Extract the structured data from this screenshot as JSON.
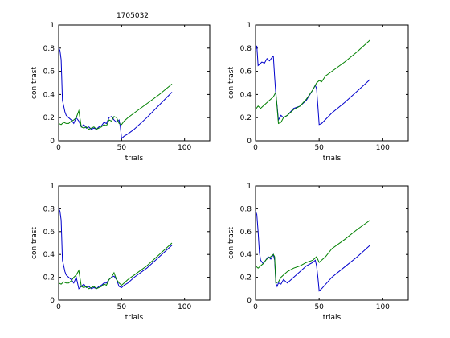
{
  "figure_title": "1705032",
  "colors": {
    "blue": "#0000cc",
    "green": "#008000",
    "axis": "#000000"
  },
  "chart_data": [
    {
      "type": "line",
      "title": "1705032",
      "xlabel": "trials",
      "ylabel": "con trast",
      "xlim": [
        0,
        120
      ],
      "ylim": [
        0,
        1
      ],
      "xticks": [
        0,
        50,
        100
      ],
      "yticks": [
        0,
        0.2,
        0.4,
        0.6,
        0.8,
        1
      ],
      "yticklabels": [
        "0",
        "0.2",
        "0.4",
        "0.6",
        "0.8",
        "1"
      ],
      "series": [
        {
          "color": "#0000cc",
          "x": [
            0,
            1,
            2,
            3,
            4,
            5,
            6,
            8,
            10,
            12,
            14,
            16,
            18,
            20,
            22,
            24,
            26,
            28,
            30,
            32,
            34,
            36,
            38,
            40,
            42,
            44,
            46,
            48,
            49,
            50,
            52,
            55,
            60,
            70,
            80,
            90
          ],
          "y": [
            0.8,
            0.78,
            0.7,
            0.35,
            0.3,
            0.25,
            0.22,
            0.2,
            0.18,
            0.15,
            0.2,
            0.17,
            0.12,
            0.14,
            0.11,
            0.12,
            0.1,
            0.11,
            0.1,
            0.12,
            0.13,
            0.16,
            0.15,
            0.2,
            0.21,
            0.18,
            0.16,
            0.18,
            0.12,
            0.02,
            0.04,
            0.06,
            0.1,
            0.2,
            0.31,
            0.42
          ]
        },
        {
          "color": "#008000",
          "x": [
            0,
            2,
            4,
            6,
            8,
            10,
            12,
            14,
            16,
            18,
            20,
            22,
            24,
            26,
            28,
            30,
            32,
            34,
            36,
            38,
            40,
            42,
            44,
            46,
            48,
            50,
            52,
            55,
            60,
            70,
            80,
            90
          ],
          "y": [
            0.15,
            0.14,
            0.16,
            0.15,
            0.15,
            0.17,
            0.18,
            0.2,
            0.26,
            0.12,
            0.11,
            0.12,
            0.1,
            0.11,
            0.12,
            0.1,
            0.11,
            0.12,
            0.14,
            0.13,
            0.18,
            0.17,
            0.21,
            0.2,
            0.15,
            0.14,
            0.17,
            0.2,
            0.24,
            0.32,
            0.4,
            0.49
          ]
        }
      ]
    },
    {
      "type": "line",
      "title": "",
      "xlabel": "trials",
      "ylabel": "con trast",
      "xlim": [
        0,
        120
      ],
      "ylim": [
        0,
        1
      ],
      "xticks": [
        0,
        50,
        100
      ],
      "yticks": [
        0,
        0.2,
        0.4,
        0.6,
        0.8,
        1
      ],
      "yticklabels": [
        "0",
        "0.2",
        "0.4",
        "0.6",
        "0.8",
        "1"
      ],
      "series": [
        {
          "color": "#0000cc",
          "x": [
            0,
            1,
            2,
            3,
            5,
            7,
            9,
            11,
            13,
            14,
            15,
            16,
            17,
            18,
            20,
            22,
            25,
            30,
            35,
            40,
            45,
            47,
            48,
            49,
            50,
            52,
            60,
            70,
            80,
            90
          ],
          "y": [
            0.78,
            0.82,
            0.65,
            0.66,
            0.68,
            0.67,
            0.71,
            0.69,
            0.72,
            0.73,
            0.55,
            0.4,
            0.3,
            0.18,
            0.22,
            0.2,
            0.22,
            0.28,
            0.3,
            0.35,
            0.44,
            0.48,
            0.45,
            0.3,
            0.14,
            0.15,
            0.24,
            0.33,
            0.43,
            0.53
          ]
        },
        {
          "color": "#008000",
          "x": [
            0,
            2,
            4,
            6,
            8,
            10,
            12,
            14,
            16,
            18,
            20,
            22,
            25,
            30,
            35,
            40,
            45,
            48,
            50,
            52,
            55,
            60,
            70,
            80,
            90
          ],
          "y": [
            0.27,
            0.3,
            0.28,
            0.3,
            0.32,
            0.34,
            0.36,
            0.38,
            0.42,
            0.15,
            0.16,
            0.2,
            0.22,
            0.27,
            0.3,
            0.36,
            0.44,
            0.5,
            0.52,
            0.51,
            0.56,
            0.6,
            0.68,
            0.77,
            0.87
          ]
        }
      ]
    },
    {
      "type": "line",
      "title": "",
      "xlabel": "trials",
      "ylabel": "con trast",
      "xlim": [
        0,
        120
      ],
      "ylim": [
        0,
        1
      ],
      "xticks": [
        0,
        50,
        100
      ],
      "yticks": [
        0,
        0.2,
        0.4,
        0.6,
        0.8,
        1
      ],
      "yticklabels": [
        "0",
        "0.2",
        "0.4",
        "0.6",
        "0.8",
        "1"
      ],
      "series": [
        {
          "color": "#0000cc",
          "x": [
            0,
            1,
            2,
            3,
            4,
            5,
            6,
            8,
            10,
            12,
            14,
            16,
            18,
            20,
            22,
            24,
            26,
            28,
            30,
            32,
            34,
            36,
            38,
            40,
            42,
            44,
            46,
            48,
            50,
            52,
            55,
            60,
            70,
            80,
            90
          ],
          "y": [
            0.8,
            0.78,
            0.7,
            0.35,
            0.3,
            0.25,
            0.22,
            0.2,
            0.18,
            0.15,
            0.2,
            0.1,
            0.12,
            0.14,
            0.11,
            0.12,
            0.1,
            0.11,
            0.1,
            0.12,
            0.13,
            0.15,
            0.15,
            0.18,
            0.2,
            0.21,
            0.18,
            0.12,
            0.11,
            0.13,
            0.15,
            0.2,
            0.28,
            0.38,
            0.48
          ]
        },
        {
          "color": "#008000",
          "x": [
            0,
            2,
            4,
            6,
            8,
            10,
            12,
            14,
            16,
            18,
            20,
            22,
            24,
            26,
            28,
            30,
            32,
            34,
            36,
            38,
            40,
            42,
            44,
            46,
            48,
            50,
            52,
            55,
            60,
            70,
            80,
            90
          ],
          "y": [
            0.15,
            0.14,
            0.16,
            0.15,
            0.15,
            0.17,
            0.2,
            0.22,
            0.26,
            0.12,
            0.11,
            0.12,
            0.1,
            0.11,
            0.12,
            0.1,
            0.11,
            0.12,
            0.14,
            0.13,
            0.18,
            0.2,
            0.24,
            0.18,
            0.15,
            0.13,
            0.15,
            0.18,
            0.22,
            0.3,
            0.4,
            0.5
          ]
        }
      ]
    },
    {
      "type": "line",
      "title": "",
      "xlabel": "trials",
      "ylabel": "con trast",
      "xlim": [
        0,
        120
      ],
      "ylim": [
        0,
        1
      ],
      "xticks": [
        0,
        50,
        100
      ],
      "yticks": [
        0,
        0.2,
        0.4,
        0.6,
        0.8,
        1
      ],
      "yticklabels": [
        "0",
        "0.2",
        "0.4",
        "0.6",
        "0.8",
        "1"
      ],
      "series": [
        {
          "color": "#0000cc",
          "x": [
            0,
            1,
            2,
            3,
            4,
            6,
            8,
            10,
            12,
            14,
            15,
            16,
            17,
            18,
            20,
            22,
            25,
            30,
            35,
            40,
            45,
            47,
            48,
            49,
            50,
            52,
            60,
            70,
            80,
            90
          ],
          "y": [
            0.78,
            0.75,
            0.6,
            0.42,
            0.35,
            0.32,
            0.35,
            0.38,
            0.36,
            0.4,
            0.35,
            0.15,
            0.12,
            0.15,
            0.14,
            0.18,
            0.15,
            0.2,
            0.25,
            0.3,
            0.33,
            0.35,
            0.3,
            0.2,
            0.08,
            0.1,
            0.2,
            0.29,
            0.38,
            0.48
          ]
        },
        {
          "color": "#008000",
          "x": [
            0,
            2,
            4,
            6,
            8,
            10,
            12,
            14,
            15,
            16,
            18,
            20,
            22,
            25,
            30,
            35,
            40,
            45,
            48,
            50,
            52,
            55,
            60,
            70,
            80,
            90
          ],
          "y": [
            0.3,
            0.28,
            0.3,
            0.32,
            0.35,
            0.37,
            0.38,
            0.4,
            0.38,
            0.15,
            0.16,
            0.2,
            0.22,
            0.25,
            0.28,
            0.3,
            0.33,
            0.35,
            0.38,
            0.33,
            0.35,
            0.38,
            0.45,
            0.53,
            0.62,
            0.7
          ]
        }
      ]
    }
  ]
}
